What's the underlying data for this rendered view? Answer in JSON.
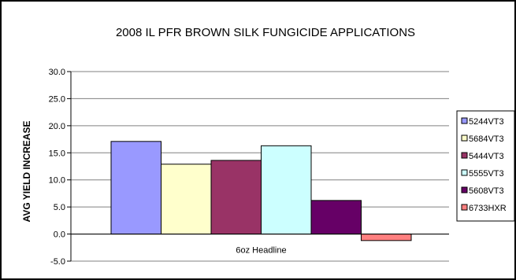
{
  "chart_data": {
    "type": "bar",
    "title": "2008 IL PFR BROWN SILK FUNGICIDE APPLICATIONS",
    "xlabel": "",
    "ylabel": "AVG YIELD INCREASE",
    "categories": [
      "6oz Headline"
    ],
    "series": [
      {
        "name": "5244VT3",
        "values": [
          17.1
        ],
        "color": "#9999ff"
      },
      {
        "name": "5684VT3",
        "values": [
          12.9
        ],
        "color": "#ffffcc"
      },
      {
        "name": "5444VT3",
        "values": [
          13.6
        ],
        "color": "#993366"
      },
      {
        "name": "5555VT3",
        "values": [
          16.3
        ],
        "color": "#ccffff"
      },
      {
        "name": "5608VT3",
        "values": [
          6.2
        ],
        "color": "#660066"
      },
      {
        "name": "6733HXR",
        "values": [
          -1.2
        ],
        "color": "#ff8080"
      }
    ],
    "ylim": [
      -5,
      30
    ],
    "yticks": [
      "30.0",
      "25.0",
      "20.0",
      "15.0",
      "10.0",
      "5.0",
      "0.0",
      "-5.0"
    ],
    "grid": true,
    "legend": "right"
  }
}
